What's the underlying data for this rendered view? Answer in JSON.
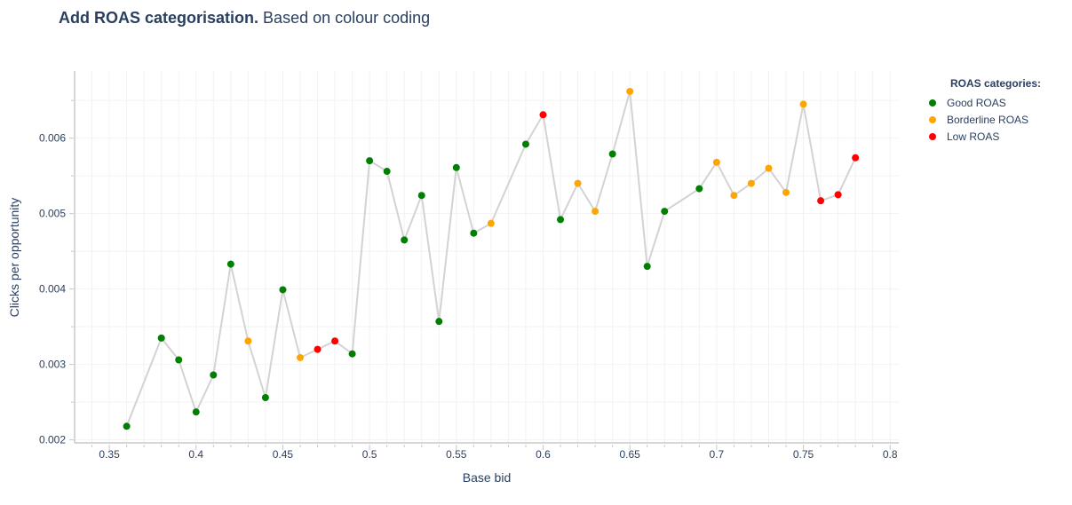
{
  "title": {
    "bold": "Add ROAS categorisation.",
    "rest": "Based on colour coding"
  },
  "legend": {
    "title": "ROAS categories:",
    "items": [
      {
        "label": "Good ROAS",
        "color": "#008000"
      },
      {
        "label": "Borderline ROAS",
        "color": "#FFA500"
      },
      {
        "label": "Low ROAS",
        "color": "#FF0000"
      }
    ]
  },
  "colors": {
    "line": "#d3d3d3",
    "grid": "#f2f2f2",
    "axis": "#c8c8c8"
  },
  "chart_data": {
    "type": "scatter",
    "title": "",
    "xlabel": "Base bid",
    "ylabel": "Clicks per opportunity",
    "xlim": [
      0.33,
      0.805
    ],
    "ylim": [
      0.00196,
      0.00689
    ],
    "xticks": [
      "0.35",
      "0.4",
      "0.45",
      "0.5",
      "0.55",
      "0.6",
      "0.65",
      "0.7",
      "0.75",
      "0.8"
    ],
    "yticks": [
      "0.002",
      "0.003",
      "0.004",
      "0.005",
      "0.006"
    ],
    "x": [
      0.36,
      0.38,
      0.39,
      0.4,
      0.41,
      0.42,
      0.43,
      0.44,
      0.45,
      0.46,
      0.47,
      0.48,
      0.49,
      0.5,
      0.51,
      0.52,
      0.53,
      0.54,
      0.55,
      0.56,
      0.57,
      0.59,
      0.6,
      0.61,
      0.62,
      0.63,
      0.64,
      0.65,
      0.66,
      0.67,
      0.69,
      0.7,
      0.71,
      0.72,
      0.73,
      0.74,
      0.75,
      0.76,
      0.77,
      0.78
    ],
    "y": [
      0.00218,
      0.00335,
      0.00306,
      0.00237,
      0.00286,
      0.00433,
      0.00331,
      0.00256,
      0.00399,
      0.00309,
      0.0032,
      0.00331,
      0.00314,
      0.0057,
      0.00556,
      0.00465,
      0.00524,
      0.00357,
      0.00561,
      0.00474,
      0.00487,
      0.00592,
      0.00631,
      0.00492,
      0.0054,
      0.00503,
      0.00579,
      0.00662,
      0.0043,
      0.00503,
      0.00533,
      0.00568,
      0.00524,
      0.0054,
      0.0056,
      0.00528,
      0.00645,
      0.00517,
      0.00525,
      0.00574
    ],
    "category": [
      "Good ROAS",
      "Good ROAS",
      "Good ROAS",
      "Good ROAS",
      "Good ROAS",
      "Good ROAS",
      "Borderline ROAS",
      "Good ROAS",
      "Good ROAS",
      "Borderline ROAS",
      "Low ROAS",
      "Low ROAS",
      "Good ROAS",
      "Good ROAS",
      "Good ROAS",
      "Good ROAS",
      "Good ROAS",
      "Good ROAS",
      "Good ROAS",
      "Good ROAS",
      "Borderline ROAS",
      "Good ROAS",
      "Low ROAS",
      "Good ROAS",
      "Borderline ROAS",
      "Borderline ROAS",
      "Good ROAS",
      "Borderline ROAS",
      "Good ROAS",
      "Good ROAS",
      "Good ROAS",
      "Borderline ROAS",
      "Borderline ROAS",
      "Borderline ROAS",
      "Borderline ROAS",
      "Borderline ROAS",
      "Borderline ROAS",
      "Low ROAS",
      "Low ROAS",
      "Low ROAS"
    ],
    "grid": true,
    "legend_position": "right"
  }
}
